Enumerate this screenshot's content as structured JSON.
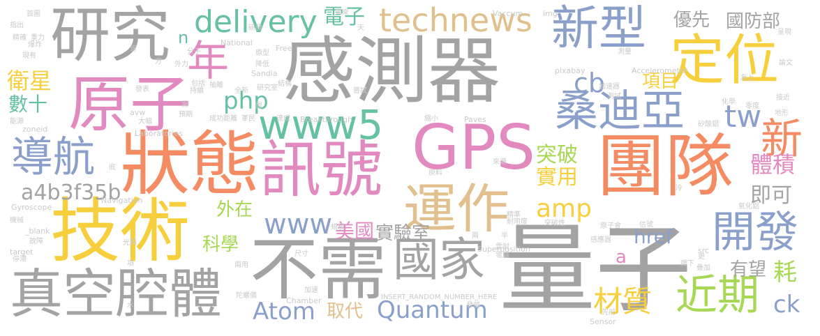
{
  "palette": {
    "gray": "#a3a3a3",
    "pink": "#e28ac0",
    "orange": "#f48b62",
    "yellow": "#f7cf3c",
    "blue": "#8b9fcb",
    "green": "#65c19f",
    "lime": "#a6d854",
    "tan": "#e1c08d",
    "ltgray": "#c9c9c9"
  },
  "words": [
    {
      "text": "感測器",
      "color": "gray"
    },
    {
      "text": "量子",
      "color": "gray"
    },
    {
      "text": "團隊",
      "color": "orange"
    },
    {
      "text": "GPS",
      "color": "pink"
    },
    {
      "text": "狀態",
      "color": "orange"
    },
    {
      "text": "技術",
      "color": "yellow"
    },
    {
      "text": "訊號",
      "color": "pink"
    },
    {
      "text": "不需",
      "color": "gray"
    },
    {
      "text": "原子",
      "color": "pink"
    },
    {
      "text": "研究",
      "color": "gray"
    },
    {
      "text": "運作",
      "color": "tan"
    },
    {
      "text": "www5",
      "color": "green"
    },
    {
      "text": "新型",
      "color": "blue"
    },
    {
      "text": "定位",
      "color": "yellow"
    },
    {
      "text": "真空腔體",
      "color": "gray"
    },
    {
      "text": "國家",
      "color": "gray"
    },
    {
      "text": "technews",
      "color": "tan"
    },
    {
      "text": "delivery",
      "color": "green"
    },
    {
      "text": "桑迪亞",
      "color": "blue"
    },
    {
      "text": "導航",
      "color": "blue"
    },
    {
      "text": "開發",
      "color": "blue"
    },
    {
      "text": "近期",
      "color": "lime"
    },
    {
      "text": "Quantum",
      "color": "blue"
    },
    {
      "text": "www",
      "color": "blue"
    },
    {
      "text": "Atom",
      "color": "blue"
    },
    {
      "text": "新",
      "color": "orange"
    },
    {
      "text": "年",
      "color": "pink"
    },
    {
      "text": "php",
      "color": "green"
    },
    {
      "text": "amp",
      "color": "yellow"
    },
    {
      "text": "a4b3f35b",
      "color": "gray"
    },
    {
      "text": "cb",
      "color": "blue"
    },
    {
      "text": "tw",
      "color": "blue"
    },
    {
      "text": "衛星",
      "color": "yellow"
    },
    {
      "text": "數十",
      "color": "green"
    },
    {
      "text": "材質",
      "color": "yellow"
    },
    {
      "text": "實用",
      "color": "yellow"
    },
    {
      "text": "突破",
      "color": "lime"
    },
    {
      "text": "體積",
      "color": "pink"
    },
    {
      "text": "電子",
      "color": "green"
    },
    {
      "text": "優先",
      "color": "gray"
    },
    {
      "text": "國防部",
      "color": "gray"
    },
    {
      "text": "項目",
      "color": "yellow"
    },
    {
      "text": "美國",
      "color": "pink"
    },
    {
      "text": "實驗室",
      "color": "gray"
    },
    {
      "text": "外在",
      "color": "lime"
    },
    {
      "text": "科學",
      "color": "lime"
    },
    {
      "text": "href",
      "color": "blue"
    },
    {
      "text": "即可",
      "color": "gray"
    },
    {
      "text": "有望",
      "color": "gray"
    },
    {
      "text": "耗",
      "color": "lime"
    },
    {
      "text": "取代",
      "color": "tan"
    },
    {
      "text": "ck",
      "color": "blue"
    },
    {
      "text": "a",
      "color": "pink"
    },
    {
      "text": "n",
      "color": "green"
    },
    {
      "text": "Navigation",
      "color": "ltgray"
    },
    {
      "text": "Gyroscope",
      "color": "ltgray"
    },
    {
      "text": "Accelerometer",
      "color": "ltgray"
    },
    {
      "text": "Superposition",
      "color": "ltgray"
    },
    {
      "text": "Breakthrough",
      "color": "ltgray"
    },
    {
      "text": "Laboratories",
      "color": "ltgray"
    },
    {
      "text": "INSERT_RANDOM_NUMBER_HERE",
      "color": "ltgray"
    },
    {
      "text": "National",
      "color": "ltgray"
    },
    {
      "text": "Sandia",
      "color": "ltgray"
    },
    {
      "text": "Chamber",
      "color": "ltgray"
    },
    {
      "text": "Vaccum",
      "color": "ltgray"
    },
    {
      "text": "Paves",
      "color": "ltgray"
    },
    {
      "text": "Free",
      "color": "ltgray"
    },
    {
      "text": "Sensor",
      "color": "ltgray"
    },
    {
      "text": "pixabay",
      "color": "ltgray"
    },
    {
      "text": "img",
      "color": "ltgray"
    },
    {
      "text": "zoneid",
      "color": "ltgray"
    },
    {
      "text": "target",
      "color": "ltgray"
    },
    {
      "text": "_blank",
      "color": "ltgray"
    },
    {
      "text": "avw",
      "color": "ltgray"
    },
    {
      "text": "src",
      "color": "ltgray"
    },
    {
      "text": "首圖",
      "color": "ltgray"
    },
    {
      "text": "指出",
      "color": "ltgray"
    },
    {
      "text": "精確",
      "color": "ltgray"
    },
    {
      "text": "現有",
      "color": "ltgray"
    },
    {
      "text": "能源",
      "color": "ltgray"
    },
    {
      "text": "機械",
      "color": "ltgray"
    },
    {
      "text": "故障",
      "color": "ltgray"
    },
    {
      "text": "停滯",
      "color": "ltgray"
    },
    {
      "text": "重力",
      "color": "ltgray"
    },
    {
      "text": "分子",
      "color": "ltgray"
    },
    {
      "text": "外力",
      "color": "ltgray"
    },
    {
      "text": "包括",
      "color": "ltgray"
    },
    {
      "text": "持續",
      "color": "ltgray"
    },
    {
      "text": "發表",
      "color": "ltgray"
    },
    {
      "text": "預期",
      "color": "ltgray"
    },
    {
      "text": "大幅",
      "color": "ltgray"
    },
    {
      "text": "成功",
      "color": "ltgray"
    },
    {
      "text": "距離",
      "color": "ltgray"
    },
    {
      "text": "全新",
      "color": "ltgray"
    },
    {
      "text": "研究室",
      "color": "ltgray"
    },
    {
      "text": "結構",
      "color": "ltgray"
    },
    {
      "text": "降低",
      "color": "ltgray"
    },
    {
      "text": "原型",
      "color": "ltgray"
    },
    {
      "text": "抽離",
      "color": "ltgray"
    },
    {
      "text": "軍民",
      "color": "ltgray"
    },
    {
      "text": "嘗試",
      "color": "ltgray"
    },
    {
      "text": "達成",
      "color": "ltgray"
    },
    {
      "text": "縮小",
      "color": "ltgray"
    },
    {
      "text": "原料",
      "color": "ltgray"
    },
    {
      "text": "來源",
      "color": "ltgray"
    },
    {
      "text": "加速器",
      "color": "ltgray"
    },
    {
      "text": "測試",
      "color": "ltgray"
    },
    {
      "text": "測量",
      "color": "ltgray"
    },
    {
      "text": "海上",
      "color": "ltgray"
    },
    {
      "text": "地形",
      "color": "ltgray"
    },
    {
      "text": "化學",
      "color": "ltgray"
    },
    {
      "text": "零度",
      "color": "ltgray"
    },
    {
      "text": "接近",
      "color": "ltgray"
    },
    {
      "text": "矽酸鋁",
      "color": "ltgray"
    },
    {
      "text": "氧化鋁",
      "color": "ltgray"
    },
    {
      "text": "冷",
      "color": "ltgray"
    },
    {
      "text": "精準",
      "color": "ltgray"
    },
    {
      "text": "耐用度",
      "color": "ltgray"
    },
    {
      "text": "突破性",
      "color": "ltgray"
    },
    {
      "text": "原子會",
      "color": "ltgray"
    },
    {
      "text": "信號",
      "color": "ltgray"
    },
    {
      "text": "雷射",
      "color": "ltgray"
    },
    {
      "text": "電腦",
      "color": "ltgray"
    },
    {
      "text": "感應器",
      "color": "ltgray"
    },
    {
      "text": "更",
      "color": "ltgray"
    },
    {
      "text": "疊加",
      "color": "ltgray"
    },
    {
      "text": "撐下",
      "color": "ltgray"
    },
    {
      "text": "兩用",
      "color": "ltgray"
    },
    {
      "text": "尺寸",
      "color": "ltgray"
    },
    {
      "text": "加速",
      "color": "ltgray"
    },
    {
      "text": "陀螺儀",
      "color": "ltgray"
    },
    {
      "text": "光照",
      "color": "ltgray"
    },
    {
      "text": "發展",
      "color": "ltgray"
    },
    {
      "text": "先前",
      "color": "ltgray"
    },
    {
      "text": "論文",
      "color": "ltgray"
    },
    {
      "text": "呈現",
      "color": "ltgray"
    },
    {
      "text": "未來",
      "color": "ltgray"
    },
    {
      "text": "天",
      "color": "ltgray"
    },
    {
      "text": "方",
      "color": "ltgray"
    },
    {
      "text": "水",
      "color": "ltgray"
    },
    {
      "text": "項",
      "color": "ltgray"
    },
    {
      "text": "底",
      "color": "ltgray"
    },
    {
      "text": "兩",
      "color": "ltgray"
    },
    {
      "text": "半",
      "color": "ltgray"
    },
    {
      "text": "需",
      "color": "ltgray"
    },
    {
      "text": "提",
      "color": "ltgray"
    },
    {
      "text": "規模",
      "color": "ltgray"
    },
    {
      "text": "爆炸",
      "color": "ltgray"
    },
    {
      "text": "研發",
      "color": "ltgray"
    },
    {
      "text": "皆",
      "color": "ltgray"
    }
  ]
}
